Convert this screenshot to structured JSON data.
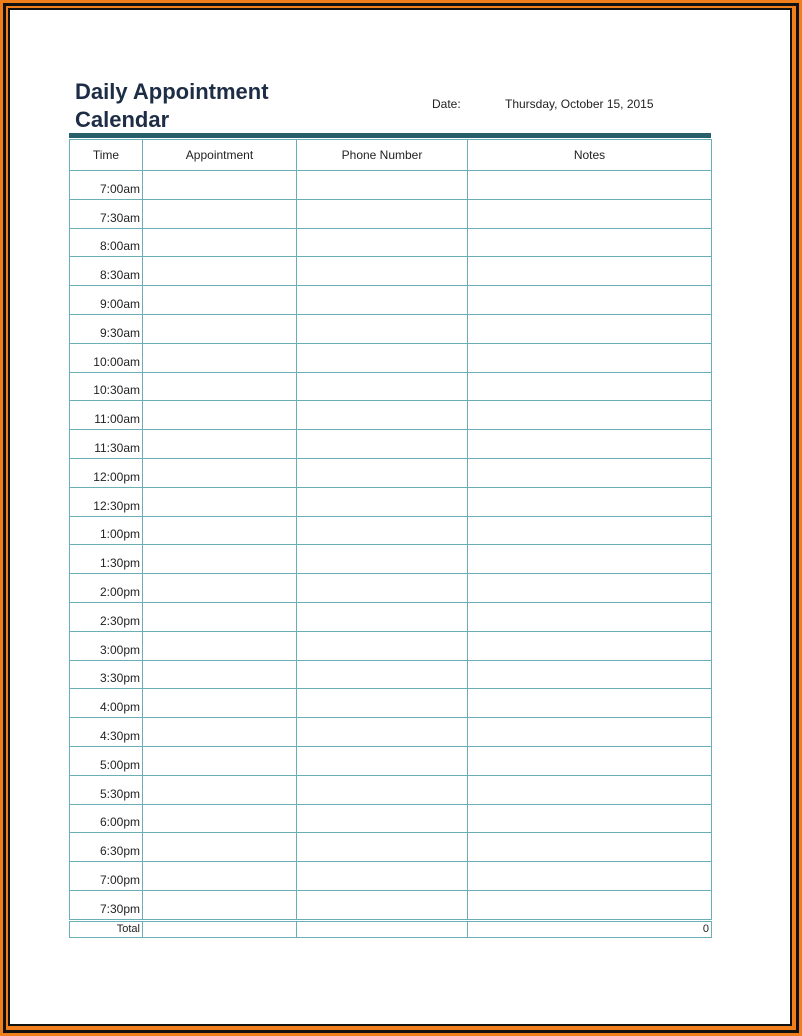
{
  "title_line1": "Daily Appointment",
  "title_line2": "Calendar",
  "date_label": "Date:",
  "date_value": "Thursday, October 15, 2015",
  "columns": [
    "Time",
    "Appointment",
    "Phone Number",
    "Notes"
  ],
  "times": [
    "7:00am",
    "7:30am",
    "8:00am",
    "8:30am",
    "9:00am",
    "9:30am",
    "10:00am",
    "10:30am",
    "11:00am",
    "11:30am",
    "12:00pm",
    "12:30pm",
    "1:00pm",
    "1:30pm",
    "2:00pm",
    "2:30pm",
    "3:00pm",
    "3:30pm",
    "4:00pm",
    "4:30pm",
    "5:00pm",
    "5:30pm",
    "6:00pm",
    "6:30pm",
    "7:00pm",
    "7:30pm"
  ],
  "total_label": "Total",
  "total_value": "0",
  "colors": {
    "frame_orange": "#f07e1a",
    "header_bar": "#27606b",
    "grid": "#6aaeb8",
    "title": "#1d2d45"
  }
}
